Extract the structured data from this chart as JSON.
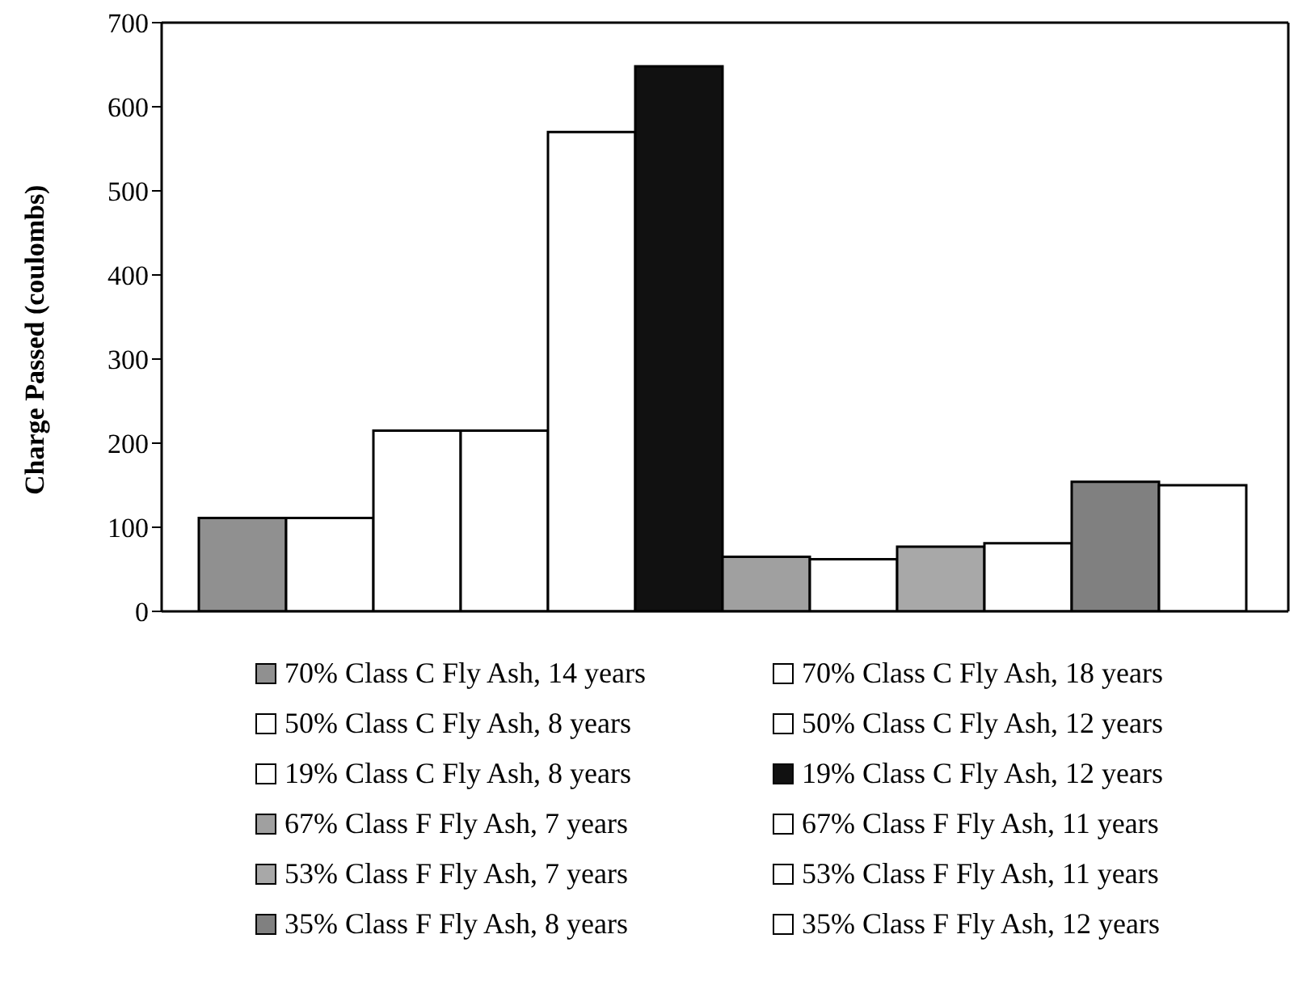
{
  "chart_data": {
    "type": "bar",
    "ylabel": "Charge Passed (coulombs)",
    "categories": [
      null
    ],
    "series": [
      {
        "name": "70% Class C Fly Ash, 14 years",
        "color": "#909090",
        "values": [
          111
        ]
      },
      {
        "name": "70% Class C Fly Ash, 18 years",
        "color": "#ffffff",
        "values": [
          111
        ]
      },
      {
        "name": "50% Class C Fly Ash, 8 years",
        "color": "#ffffff",
        "values": [
          215
        ]
      },
      {
        "name": "50% Class C Fly Ash, 12 years",
        "color": "#ffffff",
        "values": [
          215
        ]
      },
      {
        "name": "19% Class C Fly Ash, 8 years",
        "color": "#ffffff",
        "values": [
          570
        ]
      },
      {
        "name": "19% Class C Fly Ash, 12 years",
        "color": "#111111",
        "values": [
          648
        ]
      },
      {
        "name": "67% Class F Fly Ash, 7 years",
        "color": "#a0a0a0",
        "values": [
          65
        ]
      },
      {
        "name": "67% Class F Fly Ash, 11 years",
        "color": "#ffffff",
        "values": [
          62
        ]
      },
      {
        "name": "53% Class F Fly Ash, 7 years",
        "color": "#a8a8a8",
        "values": [
          77
        ]
      },
      {
        "name": "53% Class F Fly Ash, 11 years",
        "color": "#ffffff",
        "values": [
          81
        ]
      },
      {
        "name": "35% Class F Fly Ash, 8 years",
        "color": "#808080",
        "values": [
          154
        ]
      },
      {
        "name": "35% Class F Fly Ash, 12 years",
        "color": "#ffffff",
        "values": [
          150
        ]
      }
    ],
    "ylim": [
      0,
      700
    ],
    "yticks": [
      0,
      100,
      200,
      300,
      400,
      500,
      600,
      700
    ],
    "grid": false,
    "legend": "bottom"
  }
}
